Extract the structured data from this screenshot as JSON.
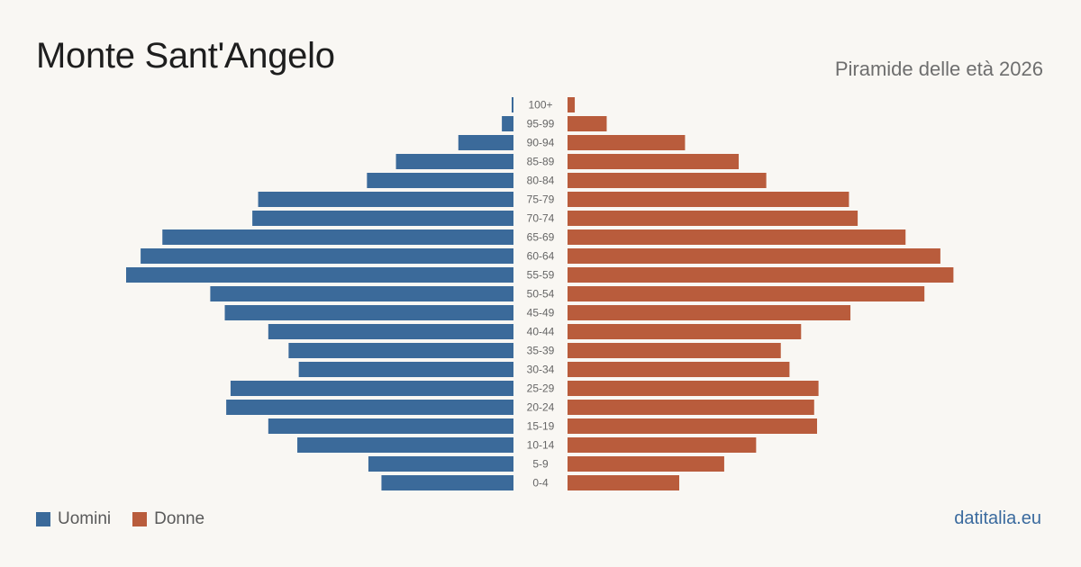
{
  "header": {
    "title": "Monte Sant'Angelo",
    "subtitle": "Piramide delle età 2026"
  },
  "legend": {
    "men_label": "Uomini",
    "women_label": "Donne"
  },
  "footer": {
    "source": "datitalia.eu"
  },
  "colors": {
    "men": "#3b6a9a",
    "women": "#b95c3c",
    "background": "#f9f7f3",
    "age_label": "#666666"
  },
  "chart_data": {
    "type": "bar",
    "orientation": "horizontal-mirrored",
    "categories": [
      "100+",
      "95-99",
      "90-94",
      "85-89",
      "80-84",
      "75-79",
      "70-74",
      "65-69",
      "60-64",
      "55-59",
      "50-54",
      "45-49",
      "40-44",
      "35-39",
      "30-34",
      "25-29",
      "20-24",
      "15-19",
      "10-14",
      "5-9",
      "0-4"
    ],
    "series": [
      {
        "name": "Uomini",
        "values": [
          1,
          8,
          38,
          81,
          101,
          176,
          180,
          242,
          257,
          267,
          209,
          199,
          169,
          155,
          148,
          195,
          198,
          169,
          149,
          100,
          91
        ]
      },
      {
        "name": "Donne",
        "values": [
          5,
          27,
          81,
          118,
          137,
          194,
          200,
          233,
          257,
          266,
          246,
          195,
          161,
          147,
          153,
          173,
          170,
          172,
          130,
          108,
          77
        ]
      }
    ],
    "title": "Monte Sant'Angelo",
    "subtitle": "Piramide delle età 2026",
    "legend_position": "bottom-left",
    "grid": false
  }
}
